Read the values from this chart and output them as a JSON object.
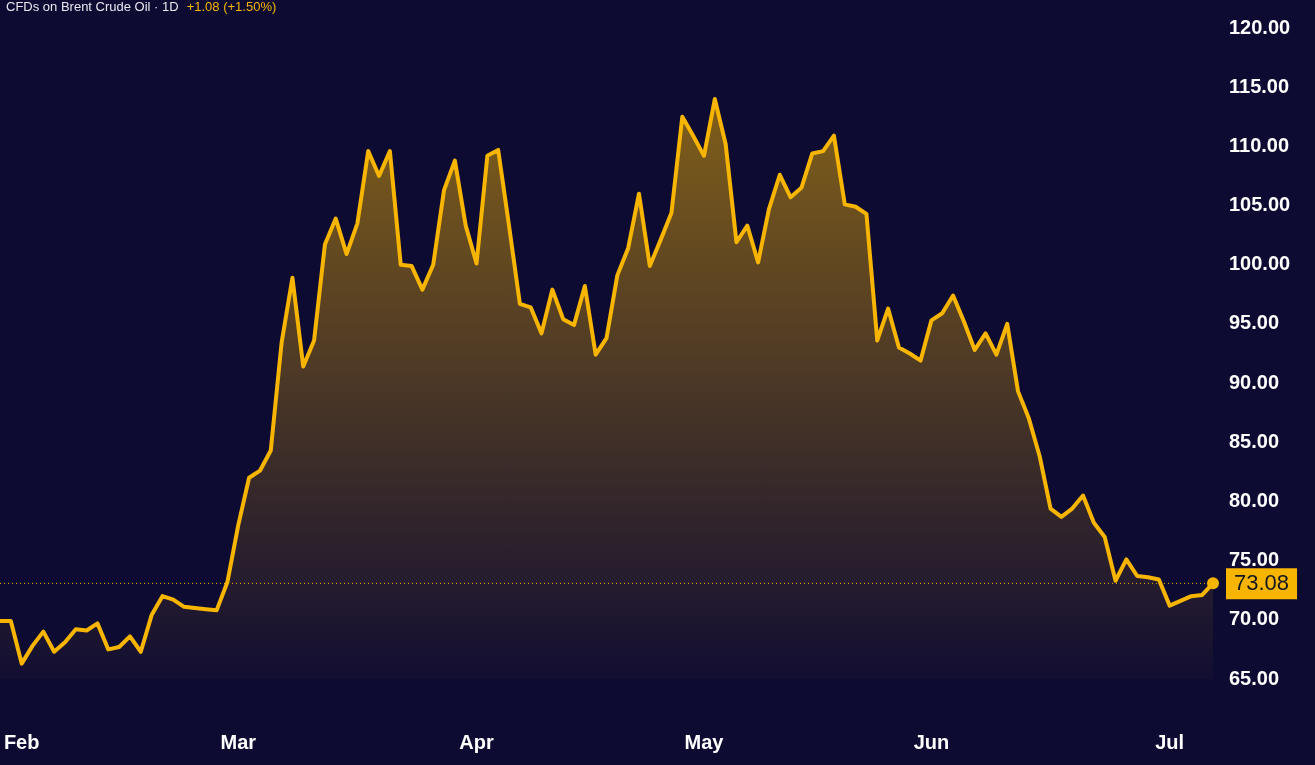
{
  "chart_data": {
    "type": "area",
    "title": "CFDs on Brent Crude Oil · 1D",
    "subtitle": "+1.08 (+1.50%)",
    "categories": [
      null,
      null,
      "Feb",
      null,
      null,
      null,
      null,
      null,
      null,
      null,
      null,
      null,
      null,
      null,
      null,
      null,
      null,
      null,
      null,
      null,
      null,
      null,
      "Mar",
      null,
      null,
      null,
      null,
      null,
      null,
      null,
      null,
      null,
      null,
      null,
      null,
      null,
      null,
      null,
      null,
      null,
      null,
      null,
      null,
      null,
      "Apr",
      null,
      null,
      null,
      null,
      null,
      null,
      null,
      null,
      null,
      null,
      null,
      null,
      null,
      null,
      null,
      null,
      null,
      null,
      null,
      null,
      "May",
      null,
      null,
      null,
      null,
      null,
      null,
      null,
      null,
      null,
      null,
      null,
      null,
      null,
      null,
      null,
      null,
      null,
      null,
      null,
      null,
      "Jun",
      null,
      null,
      null,
      null,
      null,
      null,
      null,
      null,
      null,
      null,
      null,
      null,
      null,
      null,
      null,
      null,
      null,
      null,
      null,
      null,
      null,
      "Jul",
      null,
      null,
      null,
      null
    ],
    "series": [
      {
        "color": "#f7b500",
        "values": [
          69.9,
          69.9,
          66.3,
          67.8,
          69.0,
          67.3,
          68.1,
          69.2,
          69.1,
          69.7,
          67.5,
          67.7,
          68.6,
          67.3,
          70.4,
          72.0,
          71.7,
          71.1,
          71.0,
          70.9,
          70.8,
          73.2,
          78.0,
          82.0,
          82.6,
          84.3,
          93.4,
          98.9,
          91.4,
          93.6,
          101.7,
          103.9,
          100.9,
          103.5,
          109.6,
          107.5,
          109.6,
          100.0,
          99.9,
          97.9,
          100.0,
          106.3,
          108.8,
          103.3,
          100.1,
          109.2,
          109.7,
          103.3,
          96.7,
          96.4,
          94.2,
          97.9,
          95.4,
          94.9,
          98.2,
          92.4,
          93.8,
          99.1,
          101.4,
          106.0,
          99.9,
          102.1,
          104.4,
          112.5,
          110.9,
          109.2,
          114.0,
          110.2,
          101.9,
          103.3,
          100.2,
          104.7,
          107.6,
          105.7,
          106.5,
          109.4,
          109.6,
          110.9,
          105.1,
          104.9,
          104.3,
          93.6,
          96.3,
          93.0,
          92.5,
          91.9,
          95.3,
          95.9,
          97.4,
          95.2,
          92.8,
          94.2,
          92.4,
          95.0,
          89.3,
          87.0,
          83.8,
          79.4,
          78.7,
          79.4,
          80.5,
          78.2,
          77.0,
          73.3,
          75.1,
          73.7,
          73.6,
          73.4,
          71.2,
          71.6,
          72.0,
          72.1,
          73.08
        ]
      }
    ],
    "ylim": [
      65,
      120
    ],
    "yticks": [
      {
        "value": 65,
        "label": "65.00"
      },
      {
        "value": 70,
        "label": "70.00"
      },
      {
        "value": 75,
        "label": "75.00"
      },
      {
        "value": 80,
        "label": "80.00"
      },
      {
        "value": 85,
        "label": "85.00"
      },
      {
        "value": 90,
        "label": "90.00"
      },
      {
        "value": 95,
        "label": "95.00"
      },
      {
        "value": 100,
        "label": "100.00"
      },
      {
        "value": 105,
        "label": "105.00"
      },
      {
        "value": 110,
        "label": "110.00"
      },
      {
        "value": 115,
        "label": "115.00"
      },
      {
        "value": 120,
        "label": "120.00"
      }
    ],
    "ref_lines": [
      {
        "axis": "y",
        "value": 73.08,
        "label": "73.08",
        "color": "#f7b500",
        "line_style": "dotted"
      }
    ],
    "grid": false,
    "legend": false,
    "marker": "none",
    "line_style": "solid"
  }
}
